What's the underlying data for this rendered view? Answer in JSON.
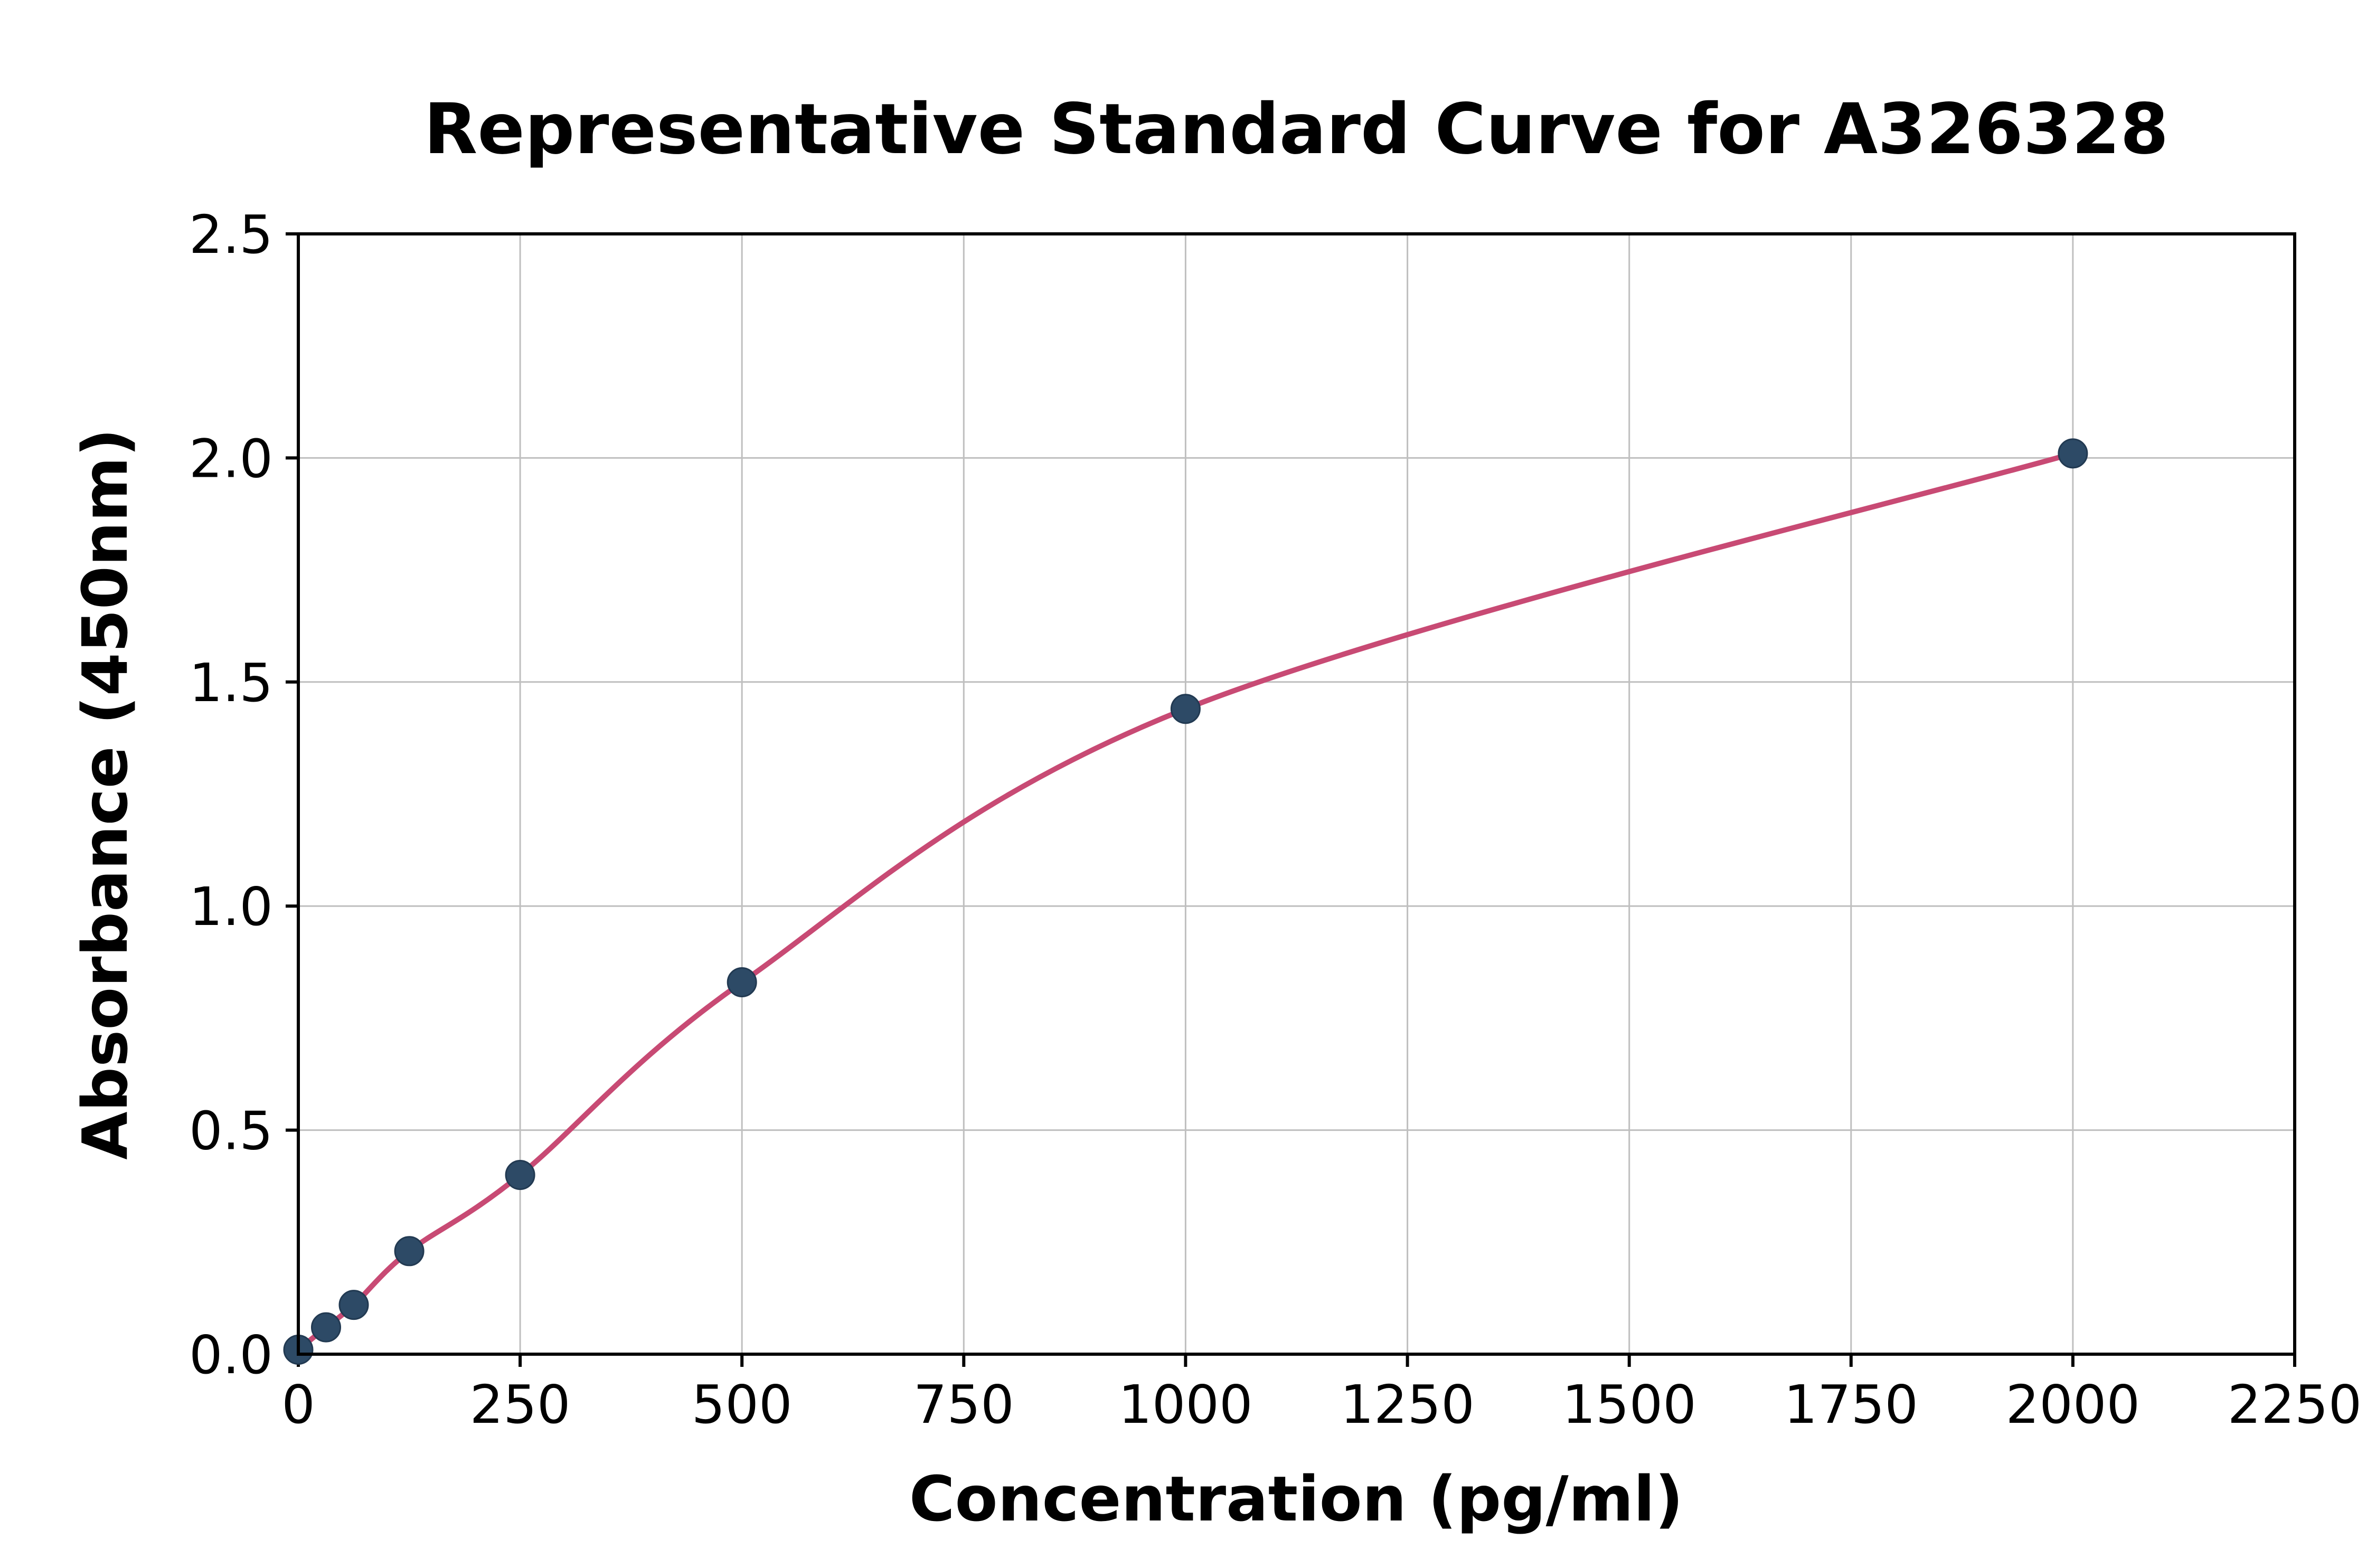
{
  "chart_data": {
    "type": "scatter",
    "title": "Representative Standard Curve for A326328",
    "xlabel": "Concentration (pg/ml)",
    "ylabel": "Absorbance (450nm)",
    "xlim": [
      0,
      2250
    ],
    "ylim": [
      0,
      2.5
    ],
    "x_ticks": [
      0,
      250,
      500,
      750,
      1000,
      1250,
      1500,
      1750,
      2000,
      2250
    ],
    "y_ticks": [
      0.0,
      0.5,
      1.0,
      1.5,
      2.0,
      2.5
    ],
    "grid": true,
    "points": {
      "x": [
        0,
        31.25,
        62.5,
        125,
        250,
        500,
        1000,
        2000
      ],
      "y": [
        0.01,
        0.06,
        0.11,
        0.23,
        0.4,
        0.83,
        1.44,
        2.01
      ]
    },
    "fit_curve": "4PL smooth fit through standards",
    "colors": {
      "curve": "#c84a74",
      "point": "#2d4a66",
      "point_edge": "#223a52",
      "grid": "#bfbfbf",
      "spine": "#000000",
      "background": "#ffffff"
    }
  }
}
